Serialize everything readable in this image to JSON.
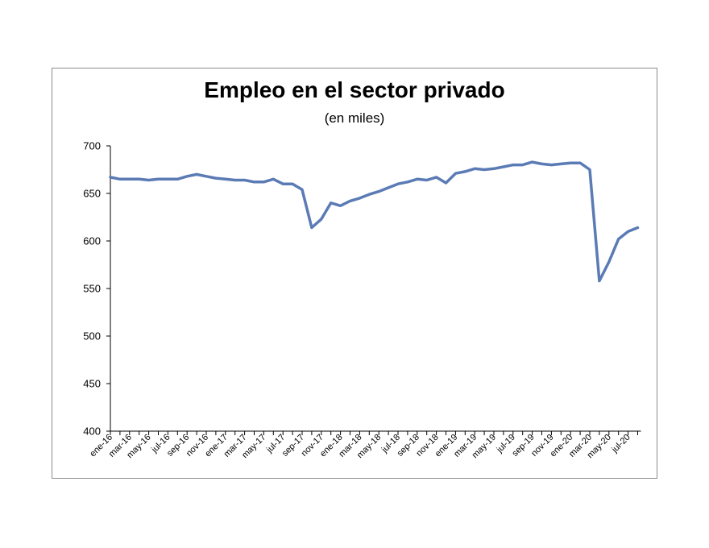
{
  "chart_data": {
    "type": "line",
    "title": "Empleo en el sector privado",
    "subtitle": "(en miles)",
    "xlabel": "",
    "ylabel": "",
    "ylim": [
      400,
      700
    ],
    "yticks": [
      400,
      450,
      500,
      550,
      600,
      650,
      700
    ],
    "legend": "none",
    "grid": false,
    "line_color": "#5b7bb5",
    "x": [
      "ene-16",
      "feb-16",
      "mar-16",
      "abr-16",
      "may-16",
      "jun-16",
      "jul-16",
      "ago-16",
      "sep-16",
      "oct-16",
      "nov-16",
      "dic-16",
      "ene-17",
      "feb-17",
      "mar-17",
      "abr-17",
      "may-17",
      "jun-17",
      "jul-17",
      "ago-17",
      "sep-17",
      "oct-17",
      "nov-17",
      "dic-17",
      "ene-18",
      "feb-18",
      "mar-18",
      "abr-18",
      "may-18",
      "jun-18",
      "jul-18",
      "ago-18",
      "sep-18",
      "oct-18",
      "nov-18",
      "dic-18",
      "ene-19",
      "feb-19",
      "mar-19",
      "abr-19",
      "may-19",
      "jun-19",
      "jul-19",
      "ago-19",
      "sep-19",
      "oct-19",
      "nov-19",
      "dic-19",
      "ene-20",
      "feb-20",
      "mar-20",
      "abr-20",
      "may-20",
      "jun-20",
      "jul-20",
      "ago-20"
    ],
    "xtick_labels": [
      "ene-16",
      "mar-16",
      "may-16",
      "jul-16",
      "sep-16",
      "nov-16",
      "ene-17",
      "mar-17",
      "may-17",
      "jul-17",
      "sep-17",
      "nov-17",
      "ene-18",
      "mar-18",
      "may-18",
      "jul-18",
      "sep-18",
      "nov-18",
      "ene-19",
      "mar-19",
      "may-19",
      "jul-19",
      "sep-19",
      "nov-19",
      "ene-20",
      "mar-20",
      "may-20",
      "jul-20"
    ],
    "values": [
      667,
      665,
      665,
      665,
      664,
      665,
      665,
      665,
      668,
      670,
      668,
      666,
      665,
      664,
      664,
      662,
      662,
      665,
      660,
      660,
      654,
      614,
      623,
      640,
      637,
      642,
      645,
      649,
      652,
      656,
      660,
      662,
      665,
      664,
      667,
      661,
      671,
      673,
      676,
      675,
      676,
      678,
      680,
      680,
      683,
      681,
      680,
      681,
      682,
      682,
      675,
      558,
      578,
      602,
      610,
      614
    ]
  }
}
